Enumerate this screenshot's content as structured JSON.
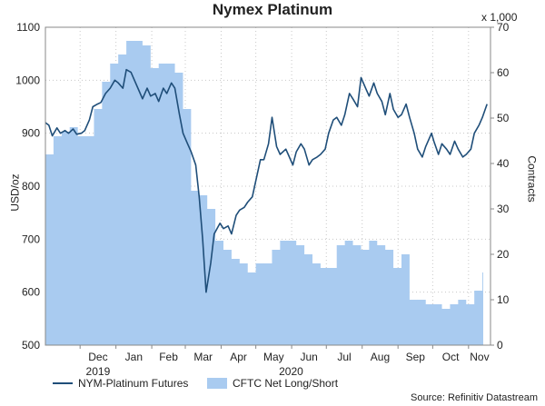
{
  "title": "Nymex Platinum",
  "right_unit": "x 1,000",
  "legend": {
    "line_label": "NYM-Platinum Futures",
    "area_label": "CFTC Net Long/Short"
  },
  "source": "Source: Refinitiv Datastream",
  "colors": {
    "line": "#1f4e79",
    "area": "#a9cbf0",
    "grid": "#c8c8c8"
  },
  "chart_data": {
    "type": "line",
    "title": "Nymex Platinum",
    "x_ticks": [
      "Dec",
      "Jan",
      "Feb",
      "Mar",
      "Apr",
      "May",
      "Jun",
      "Jul",
      "Aug",
      "Sep",
      "Oct",
      "Nov"
    ],
    "year_labels": [
      "2019",
      "2020"
    ],
    "left_axis": {
      "label": "USD/oz",
      "ylim": [
        500,
        1100
      ],
      "ticks": [
        500,
        600,
        700,
        800,
        900,
        1000,
        1100
      ]
    },
    "right_axis": {
      "label": "Contracts",
      "unit": "x 1,000",
      "ylim": [
        0,
        70
      ],
      "ticks": [
        0,
        10,
        20,
        30,
        40,
        50,
        60,
        70
      ]
    },
    "grid": true,
    "legend_position": "bottom",
    "series": [
      {
        "name": "NYM-Platinum Futures",
        "kind": "line",
        "axis": "left",
        "x": [
          "2019-11-01",
          "2019-11-04",
          "2019-11-07",
          "2019-11-11",
          "2019-11-14",
          "2019-11-18",
          "2019-11-21",
          "2019-11-25",
          "2019-11-28",
          "2019-12-02",
          "2019-12-05",
          "2019-12-09",
          "2019-12-12",
          "2019-12-16",
          "2019-12-19",
          "2019-12-23",
          "2019-12-27",
          "2019-12-31",
          "2020-01-03",
          "2020-01-07",
          "2020-01-10",
          "2020-01-14",
          "2020-01-17",
          "2020-01-21",
          "2020-01-24",
          "2020-01-28",
          "2020-01-31",
          "2020-02-04",
          "2020-02-07",
          "2020-02-11",
          "2020-02-14",
          "2020-02-18",
          "2020-02-21",
          "2020-02-25",
          "2020-02-28",
          "2020-03-03",
          "2020-03-06",
          "2020-03-10",
          "2020-03-13",
          "2020-03-16",
          "2020-03-19",
          "2020-03-23",
          "2020-03-26",
          "2020-03-31",
          "2020-04-03",
          "2020-04-07",
          "2020-04-10",
          "2020-04-14",
          "2020-04-17",
          "2020-04-21",
          "2020-04-24",
          "2020-04-28",
          "2020-05-01",
          "2020-05-05",
          "2020-05-08",
          "2020-05-12",
          "2020-05-15",
          "2020-05-19",
          "2020-05-22",
          "2020-05-27",
          "2020-05-29",
          "2020-06-02",
          "2020-06-05",
          "2020-06-09",
          "2020-06-12",
          "2020-06-16",
          "2020-06-19",
          "2020-06-23",
          "2020-06-26",
          "2020-06-30",
          "2020-07-03",
          "2020-07-07",
          "2020-07-10",
          "2020-07-14",
          "2020-07-17",
          "2020-07-21",
          "2020-07-24",
          "2020-07-28",
          "2020-07-31",
          "2020-08-04",
          "2020-08-07",
          "2020-08-11",
          "2020-08-14",
          "2020-08-18",
          "2020-08-21",
          "2020-08-25",
          "2020-08-28",
          "2020-09-01",
          "2020-09-04",
          "2020-09-08",
          "2020-09-11",
          "2020-09-15",
          "2020-09-18",
          "2020-09-22",
          "2020-09-25",
          "2020-09-30",
          "2020-10-02",
          "2020-10-06",
          "2020-10-09",
          "2020-10-13",
          "2020-10-16",
          "2020-10-20",
          "2020-10-23",
          "2020-10-27",
          "2020-10-30",
          "2020-11-03",
          "2020-11-06",
          "2020-11-10",
          "2020-11-13",
          "2020-11-17"
        ],
        "values": [
          920,
          915,
          895,
          910,
          900,
          905,
          900,
          908,
          898,
          900,
          905,
          925,
          950,
          955,
          958,
          975,
          985,
          1000,
          995,
          985,
          1020,
          1015,
          1000,
          980,
          965,
          985,
          970,
          975,
          960,
          985,
          975,
          995,
          985,
          935,
          900,
          880,
          865,
          840,
          780,
          700,
          600,
          655,
          710,
          730,
          720,
          725,
          710,
          745,
          755,
          760,
          770,
          780,
          810,
          850,
          850,
          880,
          930,
          875,
          860,
          870,
          860,
          840,
          865,
          880,
          870,
          840,
          850,
          855,
          860,
          870,
          900,
          925,
          930,
          915,
          935,
          975,
          965,
          950,
          1005,
          985,
          970,
          995,
          975,
          960,
          935,
          975,
          945,
          930,
          935,
          955,
          930,
          900,
          870,
          855,
          875,
          900,
          885,
          860,
          880,
          870,
          860,
          885,
          870,
          855,
          860,
          870,
          900,
          915,
          930,
          955
        ]
      },
      {
        "name": "CFTC Net Long/Short",
        "kind": "area",
        "axis": "right",
        "x": [
          "2019-11-01",
          "2019-11-08",
          "2019-11-15",
          "2019-11-22",
          "2019-11-29",
          "2019-12-06",
          "2019-12-13",
          "2019-12-20",
          "2019-12-27",
          "2020-01-03",
          "2020-01-10",
          "2020-01-17",
          "2020-01-24",
          "2020-01-31",
          "2020-02-07",
          "2020-02-14",
          "2020-02-21",
          "2020-02-28",
          "2020-03-06",
          "2020-03-13",
          "2020-03-20",
          "2020-03-27",
          "2020-04-03",
          "2020-04-10",
          "2020-04-17",
          "2020-04-24",
          "2020-05-01",
          "2020-05-08",
          "2020-05-15",
          "2020-05-22",
          "2020-05-29",
          "2020-06-05",
          "2020-06-12",
          "2020-06-19",
          "2020-06-26",
          "2020-07-03",
          "2020-07-10",
          "2020-07-17",
          "2020-07-24",
          "2020-07-31",
          "2020-08-07",
          "2020-08-14",
          "2020-08-21",
          "2020-08-28",
          "2020-09-04",
          "2020-09-11",
          "2020-09-18",
          "2020-09-25",
          "2020-10-02",
          "2020-10-09",
          "2020-10-16",
          "2020-10-23",
          "2020-10-30",
          "2020-11-06",
          "2020-11-13",
          "2020-11-17"
        ],
        "values": [
          42,
          46,
          47,
          48,
          46,
          46,
          52,
          58,
          62,
          64,
          67,
          67,
          66,
          61,
          62,
          62,
          60,
          52,
          34,
          33,
          30,
          23,
          21,
          19,
          18,
          16,
          18,
          18,
          21,
          23,
          23,
          22,
          20,
          18,
          17,
          17,
          22,
          23,
          22,
          21,
          23,
          22,
          21,
          17,
          20,
          10,
          10,
          9,
          9,
          8,
          9,
          10,
          9,
          12,
          16,
          16
        ]
      }
    ]
  }
}
